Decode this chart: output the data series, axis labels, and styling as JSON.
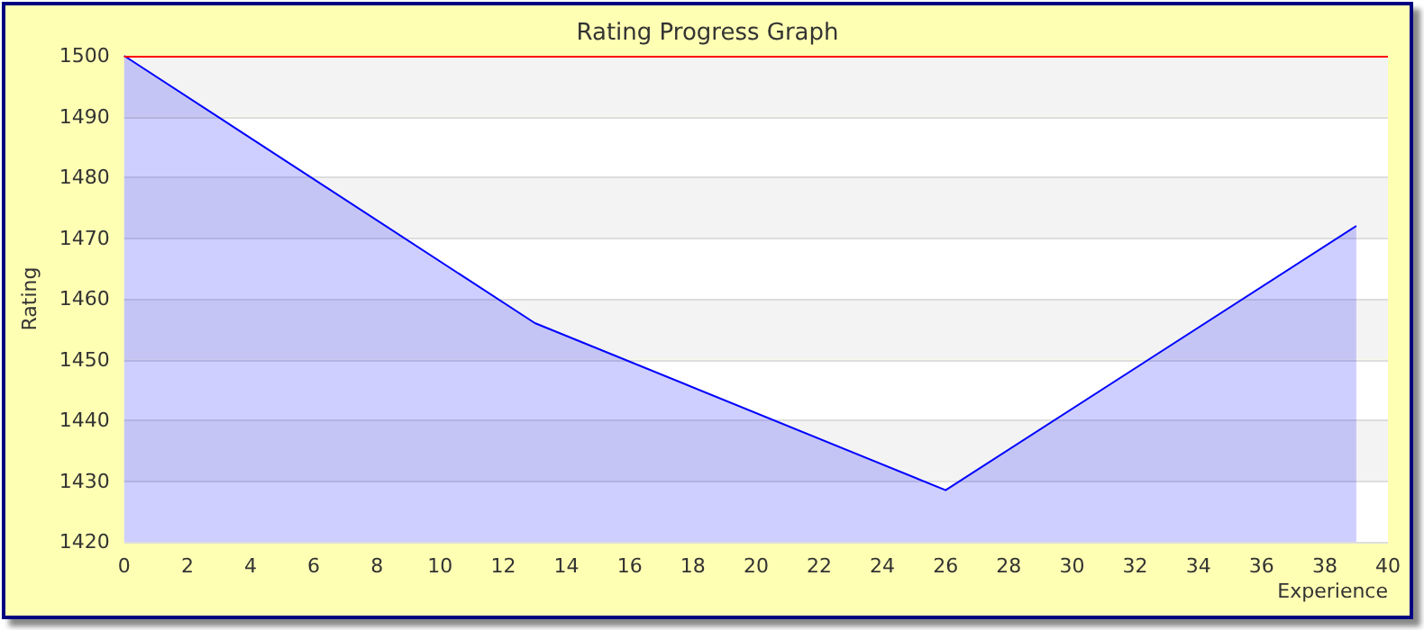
{
  "chart_data": {
    "type": "area",
    "title": "Rating Progress Graph",
    "xlabel": "Experience",
    "ylabel": "Rating",
    "x": [
      0,
      13,
      26,
      39
    ],
    "series": [
      {
        "color": "#0000ff",
        "values": [
          1500,
          1456,
          1428.5,
          1472
        ]
      }
    ],
    "xlim": [
      0,
      40
    ],
    "xticks": [
      0,
      2,
      4,
      6,
      8,
      10,
      12,
      14,
      16,
      18,
      20,
      22,
      24,
      26,
      28,
      30,
      32,
      34,
      36,
      38,
      40
    ],
    "ylim": [
      1420,
      1500
    ],
    "yticks": [
      1420,
      1430,
      1440,
      1450,
      1460,
      1470,
      1480,
      1490,
      1500
    ],
    "ref_lines": [
      {
        "axis": "y",
        "value": 1500,
        "color": "#ff0000"
      }
    ],
    "grid": "y",
    "marker": "none",
    "line_style": "solid"
  }
}
